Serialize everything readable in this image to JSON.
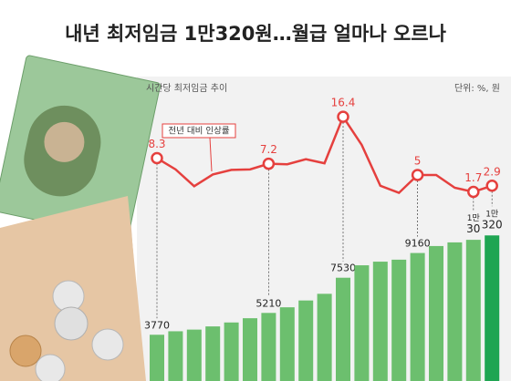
{
  "chart_data": {
    "type": "bar+line",
    "title": "내년 최저임금 1만320원…월급 얼마나 오르나",
    "subtitle": "시간당 최저임금 추이",
    "unit": "단위: %, 원",
    "annotation": "전년 대비 인상률",
    "series": [
      {
        "name": "최저임금",
        "type": "bar",
        "color": "#6cbf6e",
        "highlight_color": "#1fa552",
        "values": [
          3770,
          4000,
          4110,
          4320,
          4580,
          4860,
          5210,
          5580,
          6030,
          6470,
          7530,
          8350,
          8590,
          8720,
          9160,
          9620,
          9860,
          10030,
          10320
        ],
        "value_labels": [
          "3770",
          null,
          null,
          null,
          null,
          null,
          "5210",
          null,
          null,
          null,
          "7530",
          null,
          null,
          null,
          "9160",
          null,
          null,
          "1만\n30",
          "1만\n320"
        ]
      },
      {
        "name": "전년 대비 인상률",
        "type": "line",
        "color": "#e5403e",
        "values": [
          8.3,
          6.1,
          2.8,
          5.1,
          6.0,
          6.1,
          7.2,
          7.1,
          8.1,
          7.3,
          16.4,
          10.9,
          2.9,
          1.5,
          5,
          5.0,
          2.5,
          1.7,
          2.9
        ],
        "value_labels": [
          "8.3",
          null,
          null,
          null,
          null,
          null,
          "7.2",
          null,
          null,
          null,
          "16.4",
          null,
          null,
          null,
          "5",
          null,
          null,
          "1.7",
          "2.9"
        ]
      }
    ]
  }
}
